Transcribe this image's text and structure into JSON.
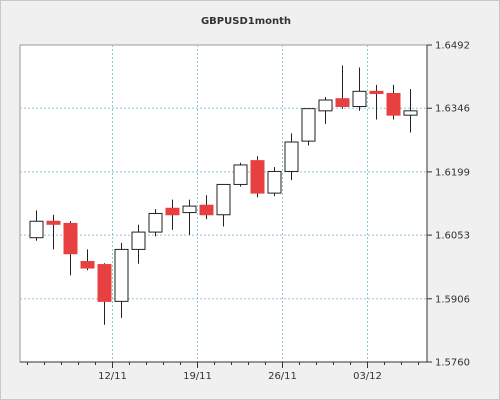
{
  "chart_data": {
    "type": "candlestick",
    "title": "GBPUSD1month",
    "y_axis": {
      "min": 1.576,
      "max": 1.6492,
      "ticks": [
        "1.6492",
        "1.6346",
        "1.6199",
        "1.6053",
        "1.5906",
        "1.5760"
      ],
      "tick_values": [
        1.6492,
        1.6346,
        1.6199,
        1.6053,
        1.5906,
        1.576
      ],
      "position": "right"
    },
    "x_axis": {
      "labels": [
        {
          "text": "12/11",
          "index": 4.5
        },
        {
          "text": "19/11",
          "index": 9.5
        },
        {
          "text": "26/11",
          "index": 14.5
        },
        {
          "text": "03/12",
          "index": 19.5
        }
      ],
      "tick_indices": [
        4.5,
        9.5,
        14.5,
        19.5
      ]
    },
    "grid": true,
    "colors": {
      "up": "#ffffff",
      "down": "#e84040",
      "grid": "#8ec8d0",
      "axis": "#333333"
    },
    "candles": [
      {
        "o": 1.6047,
        "h": 1.611,
        "l": 1.604,
        "c": 1.6085
      },
      {
        "o": 1.6085,
        "h": 1.61,
        "l": 1.602,
        "c": 1.6078
      },
      {
        "o": 1.608,
        "h": 1.6085,
        "l": 1.596,
        "c": 1.601
      },
      {
        "o": 1.5992,
        "h": 1.602,
        "l": 1.5972,
        "c": 1.5977
      },
      {
        "o": 1.5985,
        "h": 1.5988,
        "l": 1.5846,
        "c": 1.59
      },
      {
        "o": 1.59,
        "h": 1.6035,
        "l": 1.5862,
        "c": 1.602
      },
      {
        "o": 1.602,
        "h": 1.6077,
        "l": 1.5987,
        "c": 1.606
      },
      {
        "o": 1.606,
        "h": 1.6113,
        "l": 1.605,
        "c": 1.6103
      },
      {
        "o": 1.6115,
        "h": 1.6135,
        "l": 1.6065,
        "c": 1.61
      },
      {
        "o": 1.6105,
        "h": 1.6135,
        "l": 1.6053,
        "c": 1.612
      },
      {
        "o": 1.6122,
        "h": 1.6145,
        "l": 1.609,
        "c": 1.61
      },
      {
        "o": 1.61,
        "h": 1.6168,
        "l": 1.6073,
        "c": 1.617
      },
      {
        "o": 1.617,
        "h": 1.622,
        "l": 1.6165,
        "c": 1.6215
      },
      {
        "o": 1.6225,
        "h": 1.6235,
        "l": 1.614,
        "c": 1.615
      },
      {
        "o": 1.615,
        "h": 1.621,
        "l": 1.6143,
        "c": 1.62
      },
      {
        "o": 1.62,
        "h": 1.6288,
        "l": 1.618,
        "c": 1.6268
      },
      {
        "o": 1.627,
        "h": 1.6345,
        "l": 1.626,
        "c": 1.6345
      },
      {
        "o": 1.634,
        "h": 1.6372,
        "l": 1.631,
        "c": 1.6365
      },
      {
        "o": 1.6368,
        "h": 1.6445,
        "l": 1.6345,
        "c": 1.635
      },
      {
        "o": 1.635,
        "h": 1.644,
        "l": 1.634,
        "c": 1.6385
      },
      {
        "o": 1.6385,
        "h": 1.64,
        "l": 1.632,
        "c": 1.638
      },
      {
        "o": 1.638,
        "h": 1.64,
        "l": 1.632,
        "c": 1.633
      },
      {
        "o": 1.633,
        "h": 1.639,
        "l": 1.629,
        "c": 1.634
      }
    ]
  }
}
